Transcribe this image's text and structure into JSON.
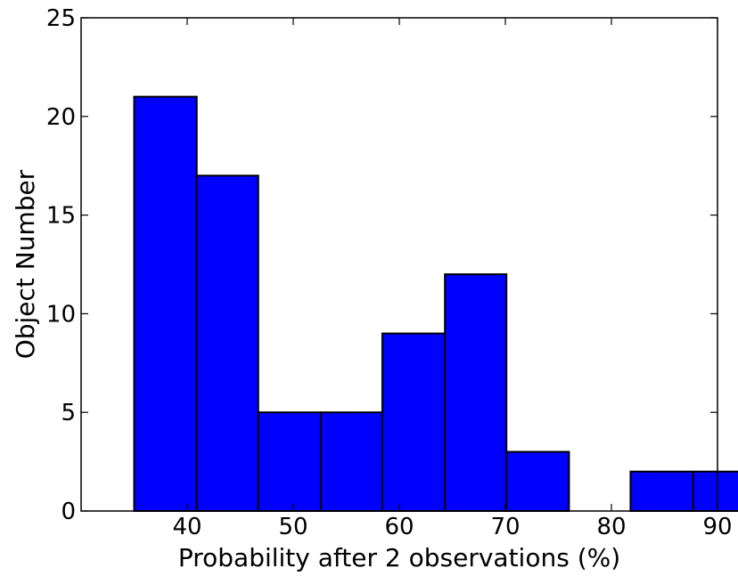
{
  "chart_data": {
    "type": "bar",
    "title": "",
    "xlabel": "Probability after 2 observations (%)",
    "ylabel": "Object Number",
    "xlim": [
      30,
      90
    ],
    "ylim": [
      0,
      25
    ],
    "x_ticks": [
      40,
      50,
      60,
      70,
      80,
      90
    ],
    "y_ticks": [
      0,
      5,
      10,
      15,
      20,
      25
    ],
    "grid": false,
    "bar_color": "#0000ff",
    "edge_color": "#000000",
    "bins": [
      {
        "x0": 35.0,
        "x1": 40.9,
        "value": 21
      },
      {
        "x0": 40.9,
        "x1": 46.7,
        "value": 17
      },
      {
        "x0": 46.7,
        "x1": 52.6,
        "value": 5
      },
      {
        "x0": 52.6,
        "x1": 58.4,
        "value": 5
      },
      {
        "x0": 58.4,
        "x1": 64.3,
        "value": 9
      },
      {
        "x0": 64.3,
        "x1": 70.1,
        "value": 12
      },
      {
        "x0": 70.1,
        "x1": 76.0,
        "value": 3
      },
      {
        "x0": 76.0,
        "x1": 81.8,
        "value": 0
      },
      {
        "x0": 81.8,
        "x1": 87.7,
        "value": 2
      },
      {
        "x0": 87.7,
        "x1": 93.5,
        "value": 2
      }
    ]
  }
}
